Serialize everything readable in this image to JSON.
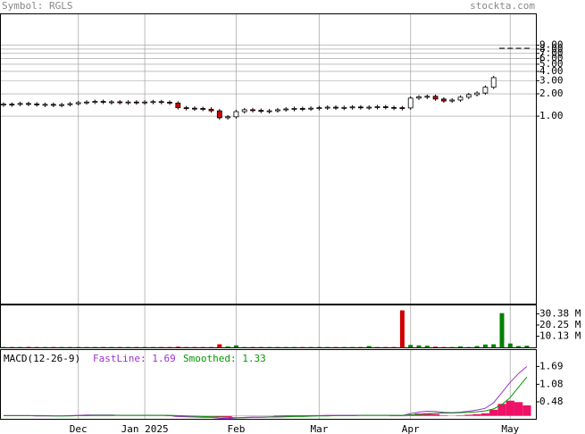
{
  "header": {
    "symbol": "Symbol: RGLS",
    "site": "stockta.com"
  },
  "chart_data": [
    {
      "type": "candlestick",
      "categories": [
        null,
        null,
        null,
        null,
        null,
        null,
        null,
        null,
        null,
        "Dec",
        null,
        null,
        null,
        null,
        null,
        null,
        null,
        "Jan 2025",
        null,
        null,
        null,
        null,
        null,
        null,
        null,
        null,
        null,
        null,
        "Feb",
        null,
        null,
        null,
        null,
        null,
        null,
        null,
        null,
        null,
        "Mar",
        null,
        null,
        null,
        null,
        null,
        null,
        null,
        null,
        null,
        null,
        "Apr",
        null,
        null,
        null,
        null,
        null,
        null,
        null,
        null,
        null,
        null,
        null,
        "May",
        null,
        null
      ],
      "open": [
        1.43,
        1.45,
        1.44,
        1.48,
        1.46,
        1.42,
        1.44,
        1.4,
        1.43,
        1.47,
        1.52,
        1.55,
        1.58,
        1.54,
        1.56,
        1.53,
        1.55,
        1.52,
        1.55,
        1.57,
        1.54,
        1.5,
        1.3,
        1.28,
        1.27,
        1.24,
        1.18,
        0.95,
        0.98,
        1.15,
        1.22,
        1.2,
        1.16,
        1.18,
        1.22,
        1.25,
        1.27,
        1.26,
        1.28,
        1.3,
        1.32,
        1.29,
        1.31,
        1.33,
        1.3,
        1.32,
        1.34,
        1.31,
        1.3,
        1.29,
        1.75,
        1.82,
        1.85,
        1.7,
        1.6,
        1.65,
        1.8,
        1.95,
        2.05,
        2.45,
        8.2,
        8.2,
        8.2,
        8.2
      ],
      "close": [
        1.45,
        1.44,
        1.48,
        1.46,
        1.42,
        1.44,
        1.4,
        1.43,
        1.47,
        1.52,
        1.55,
        1.58,
        1.54,
        1.56,
        1.53,
        1.55,
        1.52,
        1.55,
        1.57,
        1.54,
        1.5,
        1.3,
        1.28,
        1.27,
        1.24,
        1.18,
        0.95,
        0.98,
        1.15,
        1.22,
        1.2,
        1.16,
        1.18,
        1.22,
        1.25,
        1.27,
        1.26,
        1.28,
        1.3,
        1.32,
        1.29,
        1.31,
        1.33,
        1.3,
        1.32,
        1.34,
        1.31,
        1.3,
        1.29,
        1.75,
        1.82,
        1.85,
        1.7,
        1.6,
        1.65,
        1.8,
        1.95,
        2.05,
        2.45,
        3.3,
        8.2,
        8.2,
        8.2,
        8.2
      ],
      "up_color": "#ffffff",
      "down_color": "#cc0000",
      "log_scale": true,
      "ylim": [
        0.003,
        23.5
      ],
      "yticks": [
        {
          "value": 1,
          "label": "1.00"
        },
        {
          "value": 2,
          "label": "2.00"
        },
        {
          "value": 3,
          "label": "3.00"
        },
        {
          "value": 4,
          "label": "4.00"
        },
        {
          "value": 5,
          "label": "5.00"
        },
        {
          "value": 6,
          "label": "6.00"
        },
        {
          "value": 7,
          "label": "7.00"
        },
        {
          "value": 8,
          "label": "8.00"
        },
        {
          "value": 9,
          "label": "9.00"
        }
      ],
      "grid": true
    },
    {
      "type": "bar",
      "values": [
        300000,
        300000,
        300000,
        400000,
        300000,
        300000,
        300000,
        300000,
        300000,
        300000,
        300000,
        300000,
        300000,
        300000,
        300000,
        300000,
        300000,
        300000,
        300000,
        300000,
        300000,
        600000,
        300000,
        300000,
        300000,
        300000,
        2800000,
        900000,
        1800000,
        300000,
        300000,
        300000,
        300000,
        300000,
        300000,
        300000,
        300000,
        300000,
        300000,
        300000,
        300000,
        300000,
        300000,
        300000,
        1200000,
        300000,
        300000,
        300000,
        33500000,
        2200000,
        1800000,
        1500000,
        600000,
        300000,
        300000,
        900000,
        300000,
        1200000,
        2600000,
        2800000,
        31000000,
        3500000,
        1200000,
        1500000
      ],
      "up_color": "#008000",
      "down_color": "#cc0000",
      "ylim": [
        0,
        38000000
      ],
      "yticks": [
        {
          "value": 30380000,
          "label": "30.38 M"
        },
        {
          "value": 20250000,
          "label": "20.25 M"
        },
        {
          "value": 10130000,
          "label": "10.13 M"
        }
      ]
    },
    {
      "type": "line",
      "title": "MACD(12-26-9)",
      "series": [
        {
          "name": "FastLine: 1.69",
          "color": "#9933cc",
          "values": [
            0.01,
            0.01,
            0.01,
            0.01,
            0,
            0,
            0,
            0,
            0.01,
            0.02,
            0.03,
            0.03,
            0.03,
            0.03,
            0.02,
            0.02,
            0.02,
            0.02,
            0.02,
            0.02,
            0.01,
            -0.02,
            -0.03,
            -0.04,
            -0.05,
            -0.05,
            -0.08,
            -0.09,
            -0.07,
            -0.05,
            -0.04,
            -0.04,
            -0.03,
            -0.02,
            -0.01,
            0,
            0,
            0.01,
            0.01,
            0.02,
            0.02,
            0.02,
            0.02,
            0.02,
            0.02,
            0.02,
            0.02,
            0.01,
            0.01,
            0.08,
            0.13,
            0.16,
            0.15,
            0.12,
            0.11,
            0.13,
            0.16,
            0.2,
            0.26,
            0.45,
            0.8,
            1.15,
            1.45,
            1.69
          ]
        },
        {
          "name": "Smoothed: 1.33",
          "color": "#009900",
          "values": [
            0.01,
            0.01,
            0.01,
            0.01,
            0.01,
            0.01,
            0,
            0,
            0,
            0.01,
            0.01,
            0.02,
            0.02,
            0.02,
            0.02,
            0.02,
            0.02,
            0.02,
            0.02,
            0.02,
            0.02,
            0.01,
            0,
            -0.01,
            -0.02,
            -0.03,
            -0.04,
            -0.05,
            -0.06,
            -0.06,
            -0.05,
            -0.05,
            -0.04,
            -0.04,
            -0.03,
            -0.02,
            -0.02,
            -0.01,
            0,
            0,
            0.01,
            0.01,
            0.01,
            0.02,
            0.02,
            0.02,
            0.02,
            0.02,
            0.02,
            0.03,
            0.05,
            0.07,
            0.09,
            0.1,
            0.1,
            0.11,
            0.12,
            0.14,
            0.17,
            0.24,
            0.39,
            0.63,
            0.98,
            1.33
          ]
        }
      ],
      "histogram": {
        "color": "#ee1166",
        "values": [
          0,
          0,
          0,
          0,
          -0.01,
          -0.01,
          0,
          0,
          0.01,
          0.01,
          0.02,
          0.01,
          0.01,
          0.01,
          0,
          0,
          0,
          0,
          0,
          0,
          -0.01,
          -0.03,
          -0.03,
          -0.03,
          -0.03,
          -0.02,
          -0.04,
          -0.04,
          -0.01,
          0.01,
          0.01,
          0.01,
          0.01,
          0.02,
          0.02,
          0.02,
          0.02,
          0.02,
          0.01,
          0.02,
          0.01,
          0.01,
          0.01,
          0,
          0,
          0,
          0,
          -0.01,
          -0.01,
          0.05,
          0.08,
          0.09,
          0.06,
          0.02,
          0.01,
          0.02,
          0.04,
          0.06,
          0.09,
          0.21,
          0.41,
          0.52,
          0.47,
          0.36
        ]
      },
      "ylim": [
        -0.1,
        2.25
      ],
      "yticks": [
        1.69,
        1.08,
        0.48
      ]
    }
  ]
}
